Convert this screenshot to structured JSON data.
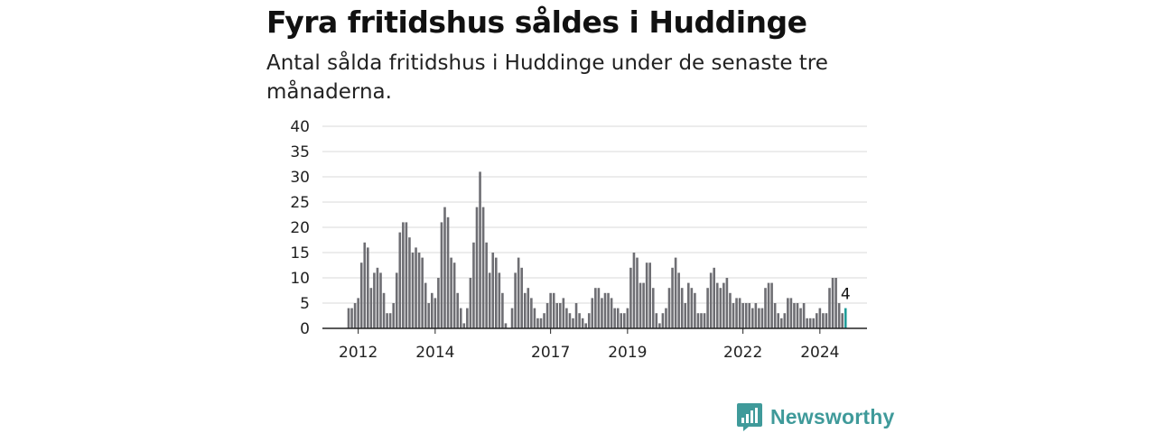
{
  "header": {
    "title": "Fyra fritidshus såldes i Huddinge",
    "subtitle": "Antal sålda fritidshus i Huddinge under de senaste tre månaderna."
  },
  "colors": {
    "bar": "#6e6e73",
    "highlight": "#1f9b98",
    "grid": "#d9d9d9",
    "axis": "#222222",
    "brand": "#3f9a9a"
  },
  "chart_data": {
    "type": "bar",
    "ylim": [
      0,
      40
    ],
    "yticks": [
      0,
      5,
      10,
      15,
      20,
      25,
      30,
      35,
      40
    ],
    "xticks": [
      {
        "label": "2012",
        "index": 3
      },
      {
        "label": "2014",
        "index": 27
      },
      {
        "label": "2017",
        "index": 63
      },
      {
        "label": "2019",
        "index": 87
      },
      {
        "label": "2022",
        "index": 123
      },
      {
        "label": "2024",
        "index": 147
      }
    ],
    "grid": true,
    "xlabel": "",
    "ylabel": "",
    "values": [
      4,
      4,
      5,
      6,
      13,
      17,
      16,
      8,
      11,
      12,
      11,
      7,
      3,
      3,
      5,
      11,
      19,
      21,
      21,
      18,
      15,
      16,
      15,
      14,
      9,
      5,
      7,
      6,
      10,
      21,
      24,
      22,
      14,
      13,
      7,
      4,
      1,
      4,
      10,
      17,
      24,
      31,
      24,
      17,
      11,
      15,
      14,
      11,
      7,
      1,
      0,
      4,
      11,
      14,
      12,
      7,
      8,
      6,
      4,
      2,
      2,
      3,
      5,
      7,
      7,
      5,
      5,
      6,
      4,
      3,
      2,
      5,
      3,
      2,
      1,
      3,
      6,
      8,
      8,
      6,
      7,
      7,
      6,
      4,
      4,
      3,
      3,
      4,
      12,
      15,
      14,
      9,
      9,
      13,
      13,
      8,
      3,
      1,
      3,
      4,
      8,
      12,
      14,
      11,
      8,
      5,
      9,
      8,
      7,
      3,
      3,
      3,
      8,
      11,
      12,
      9,
      8,
      9,
      10,
      7,
      5,
      6,
      6,
      5,
      5,
      5,
      4,
      5,
      4,
      4,
      8,
      9,
      9,
      5,
      3,
      2,
      3,
      6,
      6,
      5,
      5,
      4,
      5,
      2,
      2,
      2,
      3,
      4,
      3,
      3,
      8,
      10,
      10,
      5,
      3,
      4
    ],
    "highlight_label": "4"
  },
  "brand": {
    "name": "Newsworthy",
    "icon": "bar-chart-speech-bubble-icon"
  }
}
